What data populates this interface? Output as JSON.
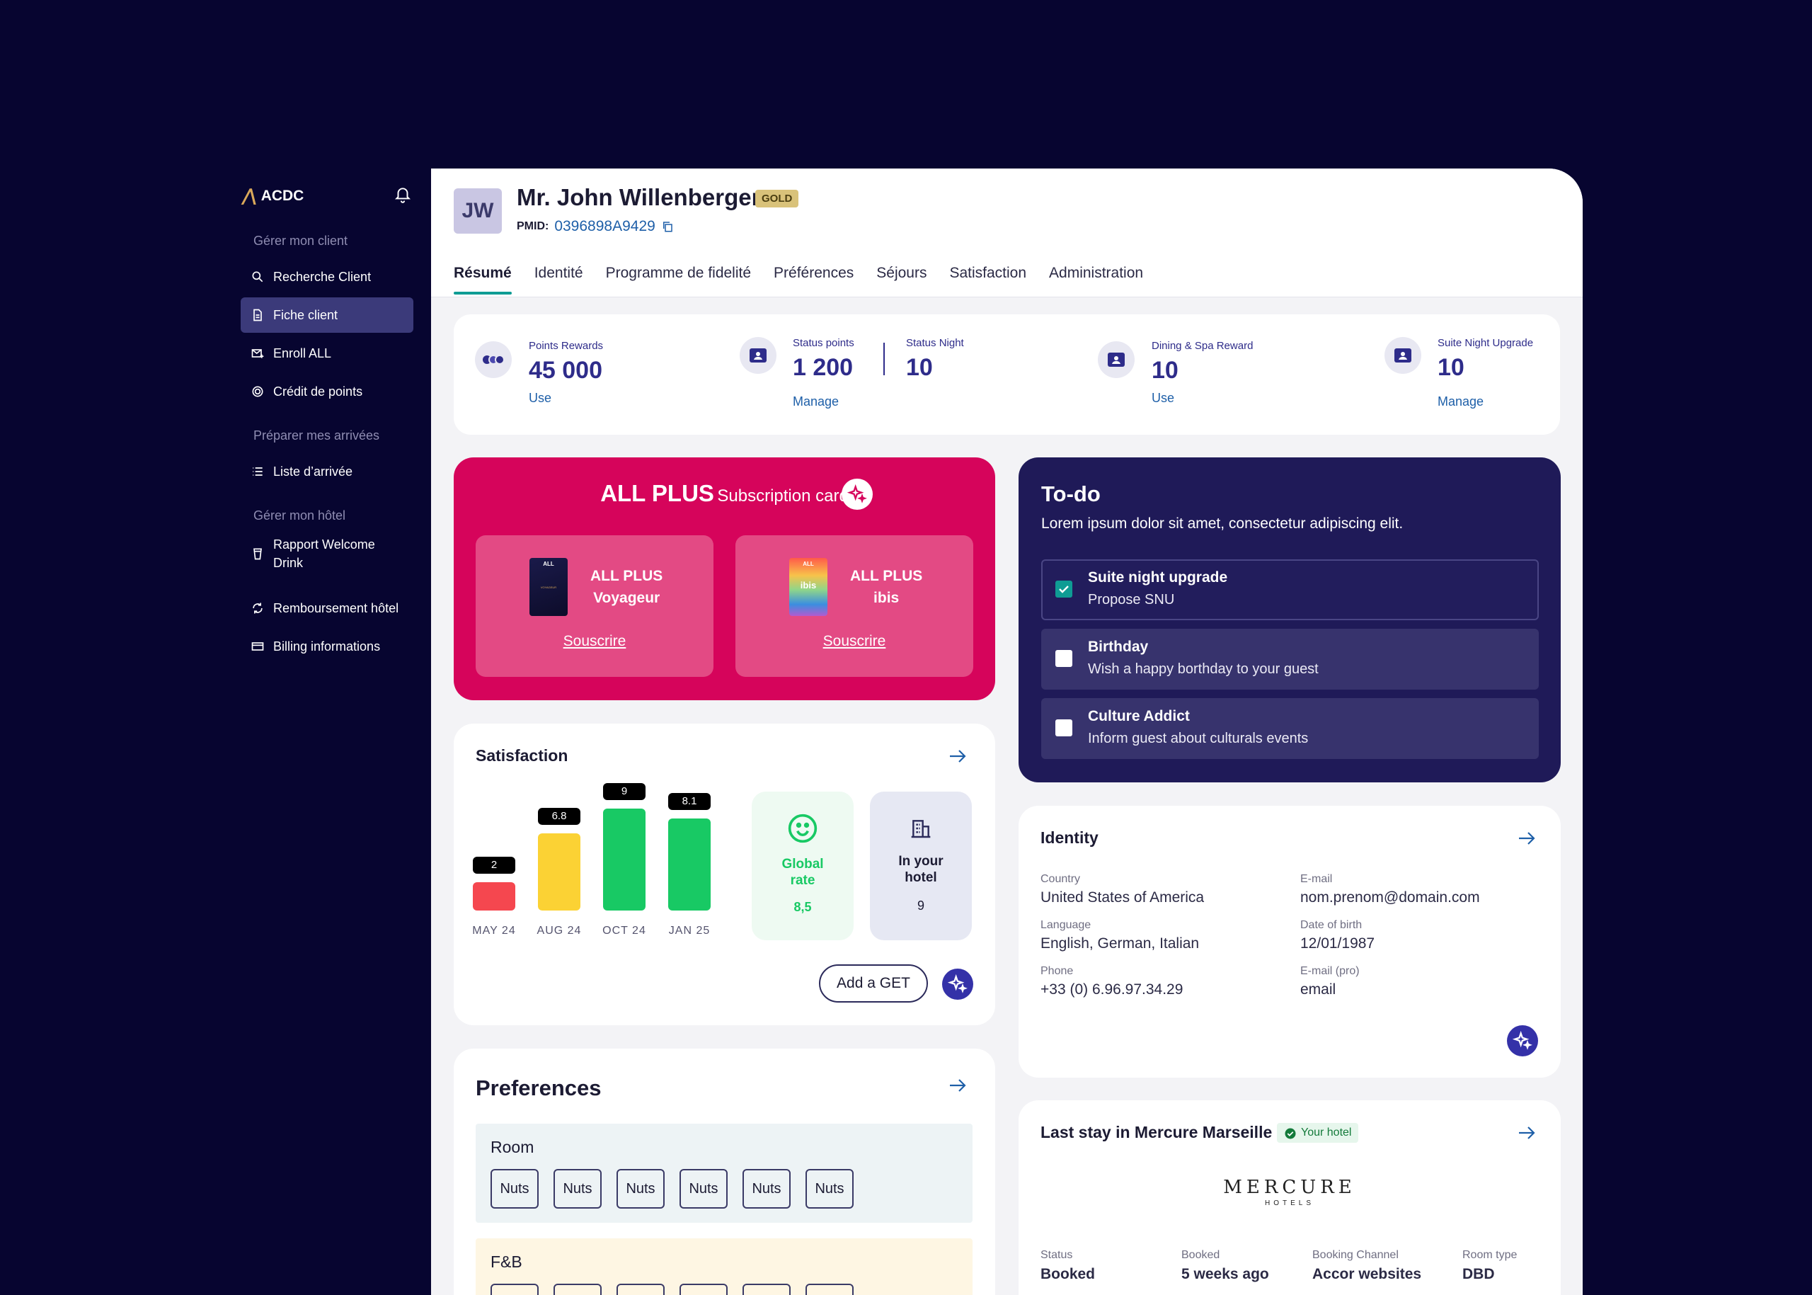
{
  "app": {
    "name": "ACDC"
  },
  "sidebar": {
    "section1": "Gérer mon client",
    "section2": "Préparer mes arrivées",
    "section3": "Gérer mon hôtel",
    "items": [
      {
        "label": "Recherche Client",
        "icon": "search-icon"
      },
      {
        "label": "Fiche client",
        "icon": "document-icon",
        "active": true
      },
      {
        "label": "Enroll ALL",
        "icon": "mail-icon"
      },
      {
        "label": "Crédit de points",
        "icon": "coin-icon"
      },
      {
        "label": "Liste d’arrivée",
        "icon": "list-icon"
      },
      {
        "label": "Rapport Welcome Drink",
        "icon": "glass-icon"
      },
      {
        "label": "Remboursement hôtel",
        "icon": "refresh-icon"
      },
      {
        "label": "Billing informations",
        "icon": "card-icon"
      }
    ]
  },
  "client": {
    "initials": "JW",
    "name": "Mr. John Willenberger",
    "tier": "GOLD",
    "pmid_label": "PMID:",
    "pmid": "0396898A9429"
  },
  "tabs": [
    "Résumé",
    "Identité",
    "Programme de fidelité",
    "Préférences",
    "Séjours",
    "Satisfaction",
    "Administration"
  ],
  "stats": {
    "points": {
      "label": "Points Rewards",
      "value": "45 000",
      "link": "Use"
    },
    "status_points": {
      "label": "Status points",
      "value": "1 200",
      "link": "Manage"
    },
    "status_night": {
      "label": "Status Night",
      "value": "10"
    },
    "dining": {
      "label": "Dining & Spa Reward",
      "value": "10",
      "link": "Use"
    },
    "suite": {
      "label": "Suite Night Upgrade",
      "value": "10",
      "link": "Manage"
    }
  },
  "allplus": {
    "title": "ALL PLUS",
    "subtitle": "Subscription card",
    "cards": [
      {
        "line1": "ALL PLUS",
        "line2": "Voyageur",
        "cta": "Souscrire",
        "card_logo": "ALL",
        "card_text": "VOYAGEUR"
      },
      {
        "line1": "ALL PLUS",
        "line2": "ibis",
        "cta": "Souscrire",
        "card_logo": "ALL",
        "card_text": "ibis"
      }
    ]
  },
  "satisfaction": {
    "title": "Satisfaction",
    "global_label": "Global rate",
    "global_value": "8,5",
    "hotel_label": "In your hotel",
    "hotel_value": "9",
    "add_button": "Add a GET",
    "colors": {
      "low": "#f5474f",
      "mid": "#fbd234",
      "high": "#18c964"
    }
  },
  "chart_data": {
    "type": "bar",
    "categories": [
      "MAY 24",
      "AUG 24",
      "OCT 24",
      "JAN 25"
    ],
    "values": [
      2,
      6.8,
      9,
      8.1
    ],
    "ylim": [
      0,
      10
    ],
    "labels": [
      "2",
      "6.8",
      "9",
      "8.1"
    ]
  },
  "preferences": {
    "title": "Preferences",
    "groups": [
      {
        "label": "Room",
        "items": [
          "Nuts",
          "Nuts",
          "Nuts",
          "Nuts",
          "Nuts",
          "Nuts"
        ]
      },
      {
        "label": "F&B"
      }
    ]
  },
  "todo": {
    "title": "To-do",
    "description": "Lorem ipsum dolor sit amet, consectetur adipiscing elit.",
    "items": [
      {
        "title": "Suite night upgrade",
        "subtitle": "Propose SNU",
        "checked": true
      },
      {
        "title": "Birthday",
        "subtitle": "Wish a happy borthday to your guest",
        "checked": false
      },
      {
        "title": "Culture Addict",
        "subtitle": "Inform guest about culturals events",
        "checked": false
      }
    ]
  },
  "identity": {
    "title": "Identity",
    "fields": {
      "country_label": "Country",
      "country": "United States of America",
      "email_label": "E-mail",
      "email": "nom.prenom@domain.com",
      "language_label": "Language",
      "language": "English, German, Italian",
      "dob_label": "Date of birth",
      "dob": "12/01/1987",
      "phone_label": "Phone",
      "phone": "+33 (0) 6.96.97.34.29",
      "email_pro_label": "E-mail (pro)",
      "email_pro": "email"
    }
  },
  "last_stay": {
    "title": "Last stay in Mercure Marseille",
    "badge": "Your hotel",
    "brand": "MERCURE",
    "brand_sub": "HOTELS",
    "status_label": "Status",
    "status": "Booked",
    "booked_label": "Booked",
    "booked": "5 weeks ago",
    "channel_label": "Booking Channel",
    "channel": "Accor websites",
    "room_label": "Room type",
    "room": "DBD"
  }
}
